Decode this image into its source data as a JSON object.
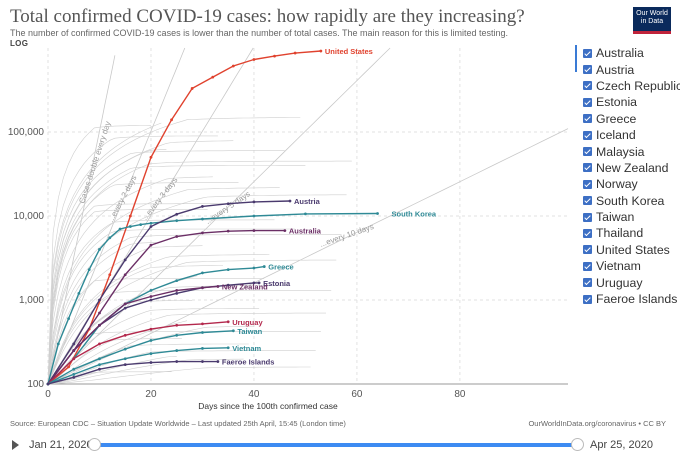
{
  "header": {
    "title": "Total confirmed COVID-19 cases: how rapidly are they increasing?",
    "subtitle": "The number of confirmed COVID-19 cases is lower than the number of total cases. The main reason for this is limited testing.",
    "scale_toggle": "LOG",
    "logo_line1": "Our World",
    "logo_line2": "in Data"
  },
  "footer": {
    "source": "Source: European CDC – Situation Update Worldwide – Last updated 25th April, 15:45 (London time)",
    "credit": "OurWorldInData.org/coronavirus • CC BY"
  },
  "timeline": {
    "start": "Jan 21, 2020",
    "end": "Apr 25, 2020"
  },
  "colors": {
    "checkbox": "#3d6fc4",
    "slider": "#3d8bf2",
    "background_lines": "#cccccc",
    "guide_lines": "#bbbbbb"
  },
  "legend": [
    {
      "label": "Australia",
      "checked": true
    },
    {
      "label": "Austria",
      "checked": true
    },
    {
      "label": "Czech Republic",
      "checked": true
    },
    {
      "label": "Estonia",
      "checked": true
    },
    {
      "label": "Greece",
      "checked": true
    },
    {
      "label": "Iceland",
      "checked": true
    },
    {
      "label": "Malaysia",
      "checked": true
    },
    {
      "label": "New Zealand",
      "checked": true
    },
    {
      "label": "Norway",
      "checked": true
    },
    {
      "label": "South Korea",
      "checked": true
    },
    {
      "label": "Taiwan",
      "checked": true
    },
    {
      "label": "Thailand",
      "checked": true
    },
    {
      "label": "United States",
      "checked": true
    },
    {
      "label": "Vietnam",
      "checked": true
    },
    {
      "label": "Uruguay",
      "checked": true
    },
    {
      "label": "Faeroe Islands",
      "checked": true
    }
  ],
  "chart_data": {
    "type": "line",
    "xlabel": "Days since the 100th confirmed case",
    "y_scale": "log",
    "xlim": [
      0,
      101
    ],
    "ylim": [
      100,
      1000000
    ],
    "x_ticks": [
      0,
      20,
      40,
      60,
      80
    ],
    "y_ticks": [
      {
        "value": 100,
        "label": "100"
      },
      {
        "value": 1000,
        "label": "1,000"
      },
      {
        "value": 10000,
        "label": "10,000"
      },
      {
        "value": 100000,
        "label": "100,000"
      }
    ],
    "grid": true,
    "legend_position": "right",
    "doubling_guides": [
      {
        "label": "Cases double every day",
        "days": 1
      },
      {
        "label": "...every 2 days",
        "days": 2
      },
      {
        "label": "...every 3 days",
        "days": 3
      },
      {
        "label": "...every 5 days",
        "days": 5
      },
      {
        "label": "...every 10 days",
        "days": 10
      }
    ],
    "series": [
      {
        "name": "United States",
        "color": "#e0422e",
        "x": [
          0,
          4,
          8,
          12,
          16,
          20,
          24,
          28,
          32,
          36,
          40,
          44,
          48,
          53
        ],
        "y": [
          100,
          160,
          450,
          2000,
          10000,
          50000,
          140000,
          330000,
          450000,
          610000,
          730000,
          800000,
          870000,
          920000
        ]
      },
      {
        "name": "South Korea",
        "color": "#2f8a96",
        "x": [
          0,
          2,
          4,
          6,
          8,
          10,
          12,
          14,
          16,
          18,
          20,
          25,
          30,
          40,
          50,
          64
        ],
        "y": [
          100,
          300,
          600,
          1200,
          2300,
          4000,
          5500,
          7000,
          7500,
          7900,
          8200,
          8800,
          9200,
          10000,
          10600,
          10700
        ]
      },
      {
        "name": "Austria",
        "color": "#4a3a6e",
        "x": [
          0,
          5,
          10,
          15,
          20,
          25,
          30,
          35,
          40,
          47
        ],
        "y": [
          100,
          300,
          1000,
          3000,
          7500,
          10500,
          13000,
          14000,
          14700,
          15100
        ]
      },
      {
        "name": "Australia",
        "color": "#6b2f66",
        "x": [
          0,
          5,
          10,
          15,
          20,
          25,
          30,
          35,
          40,
          46
        ],
        "y": [
          100,
          250,
          700,
          2000,
          4500,
          5700,
          6300,
          6600,
          6700,
          6700
        ]
      },
      {
        "name": "Greece",
        "color": "#2f8a96",
        "x": [
          0,
          5,
          10,
          15,
          20,
          25,
          30,
          35,
          40,
          42
        ],
        "y": [
          100,
          200,
          500,
          900,
          1300,
          1700,
          2100,
          2300,
          2400,
          2500
        ]
      },
      {
        "name": "Estonia",
        "color": "#4a3a6e",
        "x": [
          0,
          5,
          10,
          15,
          20,
          25,
          30,
          35,
          40,
          41
        ],
        "y": [
          100,
          250,
          500,
          800,
          1000,
          1200,
          1400,
          1500,
          1600,
          1600
        ]
      },
      {
        "name": "New Zealand",
        "color": "#6b2f66",
        "x": [
          0,
          5,
          10,
          15,
          20,
          25,
          30,
          33
        ],
        "y": [
          100,
          250,
          500,
          900,
          1100,
          1300,
          1400,
          1450
        ]
      },
      {
        "name": "Uruguay",
        "color": "#b3284c",
        "x": [
          0,
          5,
          10,
          15,
          20,
          25,
          30,
          35
        ],
        "y": [
          100,
          200,
          300,
          380,
          450,
          500,
          520,
          550
        ]
      },
      {
        "name": "Taiwan",
        "color": "#2f8a96",
        "x": [
          0,
          5,
          10,
          15,
          20,
          25,
          30,
          36
        ],
        "y": [
          100,
          150,
          200,
          260,
          330,
          380,
          410,
          430
        ]
      },
      {
        "name": "Vietnam",
        "color": "#2f8a96",
        "x": [
          0,
          5,
          10,
          15,
          20,
          25,
          30,
          35
        ],
        "y": [
          100,
          130,
          170,
          200,
          230,
          250,
          265,
          270
        ]
      },
      {
        "name": "Faeroe Islands",
        "color": "#4a3a6e",
        "x": [
          0,
          5,
          10,
          15,
          20,
          25,
          30,
          33
        ],
        "y": [
          100,
          120,
          150,
          170,
          180,
          185,
          185,
          185
        ]
      }
    ]
  }
}
